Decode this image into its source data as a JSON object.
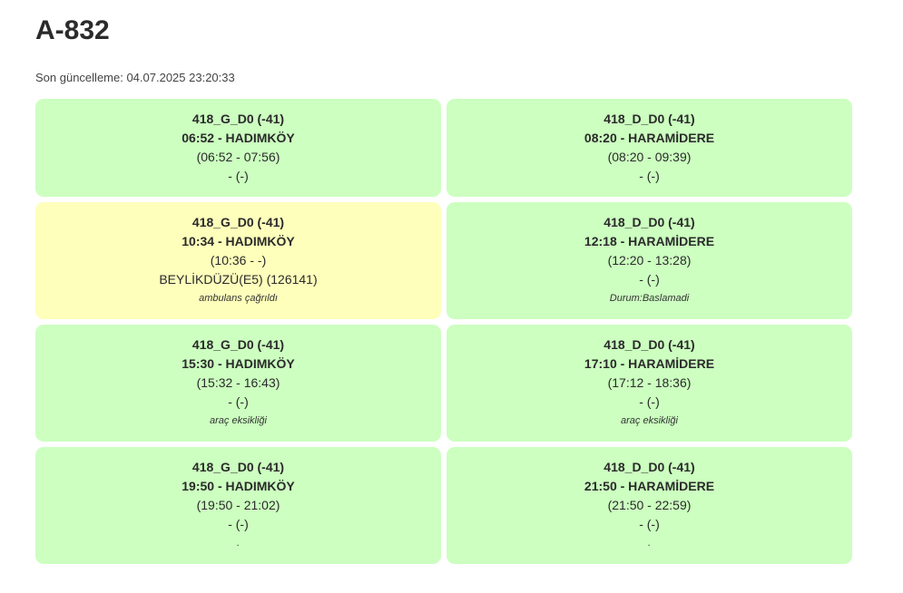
{
  "page": {
    "title": "A-832",
    "updated": "Son güncelleme: 04.07.2025 23:20:33"
  },
  "cards": [
    {
      "code": "418_G_D0 (-41)",
      "route": "06:52 - HADIMKÖY",
      "window": "(06:52 - 07:56)",
      "vehicle": "- (-)",
      "note": "",
      "status": "ok"
    },
    {
      "code": "418_D_D0 (-41)",
      "route": "08:20 - HARAMİDERE",
      "window": "(08:20 - 09:39)",
      "vehicle": "- (-)",
      "note": "",
      "status": "ok"
    },
    {
      "code": "418_G_D0 (-41)",
      "route": "10:34 - HADIMKÖY",
      "window": "(10:36 - -)",
      "vehicle": "BEYLİKDÜZÜ(E5) (126141)",
      "note": "ambulans çağrıldı",
      "status": "warn"
    },
    {
      "code": "418_D_D0 (-41)",
      "route": "12:18 - HARAMİDERE",
      "window": "(12:20 - 13:28)",
      "vehicle": "- (-)",
      "note": "Durum:Baslamadi",
      "status": "ok"
    },
    {
      "code": "418_G_D0 (-41)",
      "route": "15:30 - HADIMKÖY",
      "window": "(15:32 - 16:43)",
      "vehicle": "- (-)",
      "note": "araç eksikliği",
      "status": "ok"
    },
    {
      "code": "418_D_D0 (-41)",
      "route": "17:10 - HARAMİDERE",
      "window": "(17:12 - 18:36)",
      "vehicle": "- (-)",
      "note": "araç eksikliği",
      "status": "ok"
    },
    {
      "code": "418_G_D0 (-41)",
      "route": "19:50 - HADIMKÖY",
      "window": "(19:50 - 21:02)",
      "vehicle": "- (-)",
      "note": ".",
      "status": "ok"
    },
    {
      "code": "418_D_D0 (-41)",
      "route": "21:50 - HARAMİDERE",
      "window": "(21:50 - 22:59)",
      "vehicle": "- (-)",
      "note": ".",
      "status": "ok"
    }
  ],
  "colors": {
    "ok": "#ccffc0",
    "warn": "#feffbb"
  }
}
